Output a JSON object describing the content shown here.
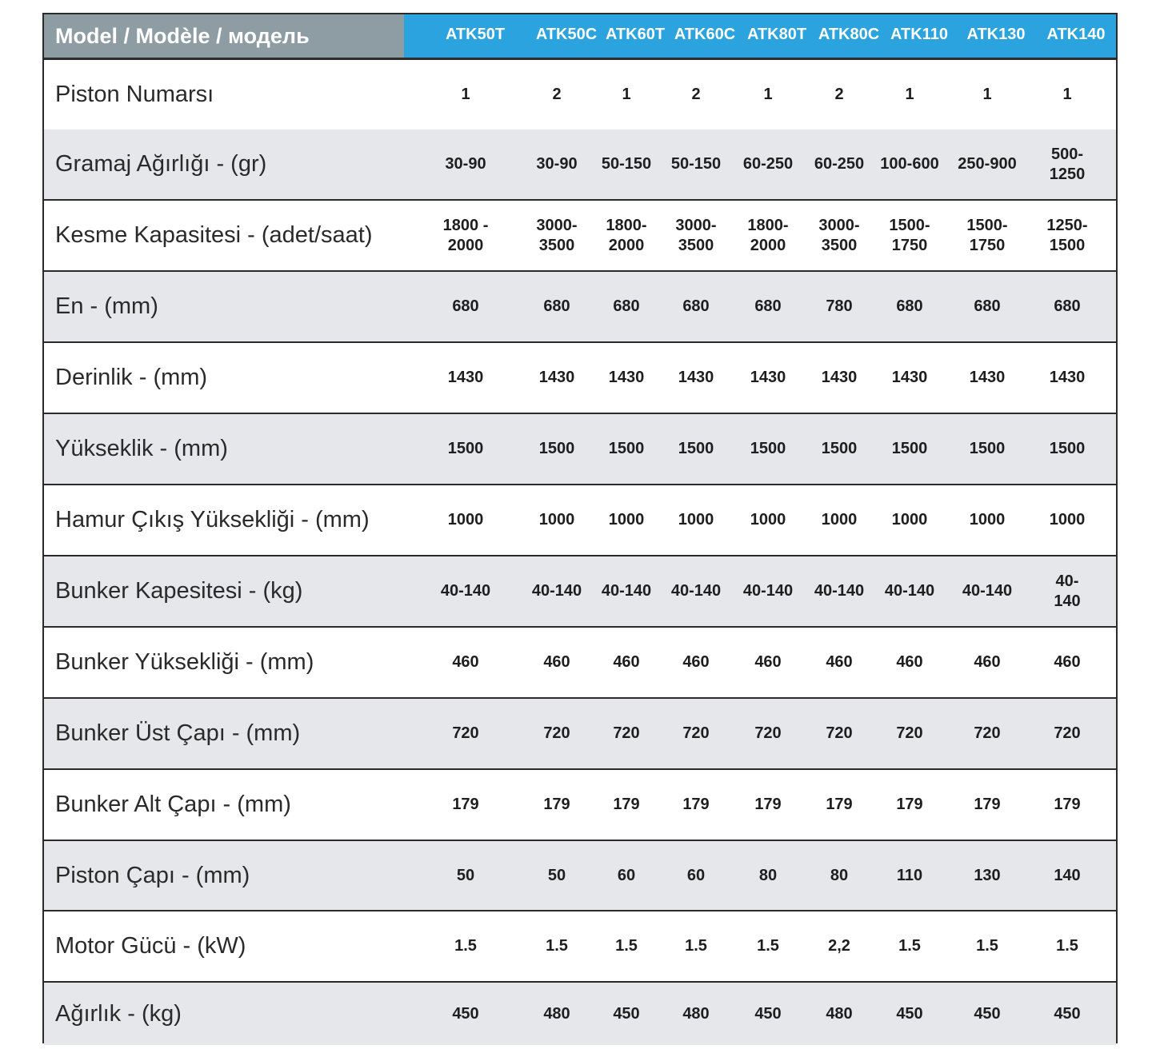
{
  "header": {
    "title": "Model / Modèle / модель",
    "models": [
      "ATK50T",
      "ATK50C",
      "ATK60T",
      "ATK60C",
      "ATK80T",
      "ATK80C",
      "ATK110",
      "ATK130",
      "ATK140"
    ]
  },
  "rows": [
    {
      "label": "Piston Numarsı",
      "values": [
        "1",
        "2",
        "1",
        "2",
        "1",
        "2",
        "1",
        "1",
        "1"
      ]
    },
    {
      "label": "Gramaj Ağırlığı - (gr)",
      "values": [
        "30-90",
        "30-90",
        "50-150",
        "50-150",
        "60-250",
        "60-250",
        "100-600",
        "250-900",
        "500-1250"
      ]
    },
    {
      "label": "Kesme Kapasitesi - (adet/saat)",
      "values": [
        "1800 -\n2000",
        "3000-\n3500",
        "1800-\n2000",
        "3000-\n3500",
        "1800-\n2000",
        "3000-\n3500",
        "1500-\n1750",
        "1500-\n1750",
        "1250-\n1500"
      ]
    },
    {
      "label": "En - (mm)",
      "values": [
        "680",
        "680",
        "680",
        "680",
        "680",
        "780",
        "680",
        "680",
        "680"
      ]
    },
    {
      "label": "Derinlik - (mm)",
      "values": [
        "1430",
        "1430",
        "1430",
        "1430",
        "1430",
        "1430",
        "1430",
        "1430",
        "1430"
      ]
    },
    {
      "label": "Yükseklik - (mm)",
      "values": [
        "1500",
        "1500",
        "1500",
        "1500",
        "1500",
        "1500",
        "1500",
        "1500",
        "1500"
      ]
    },
    {
      "label": "Hamur Çıkış Yüksekliği - (mm)",
      "values": [
        "1000",
        "1000",
        "1000",
        "1000",
        "1000",
        "1000",
        "1000",
        "1000",
        "1000"
      ]
    },
    {
      "label": "Bunker Kapesitesi - (kg)",
      "values": [
        "40-140",
        "40-140",
        "40-140",
        "40-140",
        "40-140",
        "40-140",
        "40-140",
        "40-140",
        "40-140"
      ]
    },
    {
      "label": "Bunker Yüksekliği - (mm)",
      "values": [
        "460",
        "460",
        "460",
        "460",
        "460",
        "460",
        "460",
        "460",
        "460"
      ]
    },
    {
      "label": "Bunker Üst Çapı - (mm)",
      "values": [
        "720",
        "720",
        "720",
        "720",
        "720",
        "720",
        "720",
        "720",
        "720"
      ]
    },
    {
      "label": "Bunker Alt Çapı - (mm)",
      "values": [
        "179",
        "179",
        "179",
        "179",
        "179",
        "179",
        "179",
        "179",
        "179"
      ]
    },
    {
      "label": "Piston Çapı -  (mm)",
      "values": [
        "50",
        "50",
        "60",
        "60",
        "80",
        "80",
        "110",
        "130",
        "140"
      ]
    },
    {
      "label": "Motor Gücü - (kW)",
      "values": [
        "1.5",
        "1.5",
        "1.5",
        "1.5",
        "1.5",
        "2,2",
        "1.5",
        "1.5",
        "1.5"
      ]
    },
    {
      "label": "Ağırlık - (kg)",
      "values": [
        "450",
        "480",
        "450",
        "480",
        "450",
        "480",
        "450",
        "450",
        "450"
      ]
    }
  ]
}
